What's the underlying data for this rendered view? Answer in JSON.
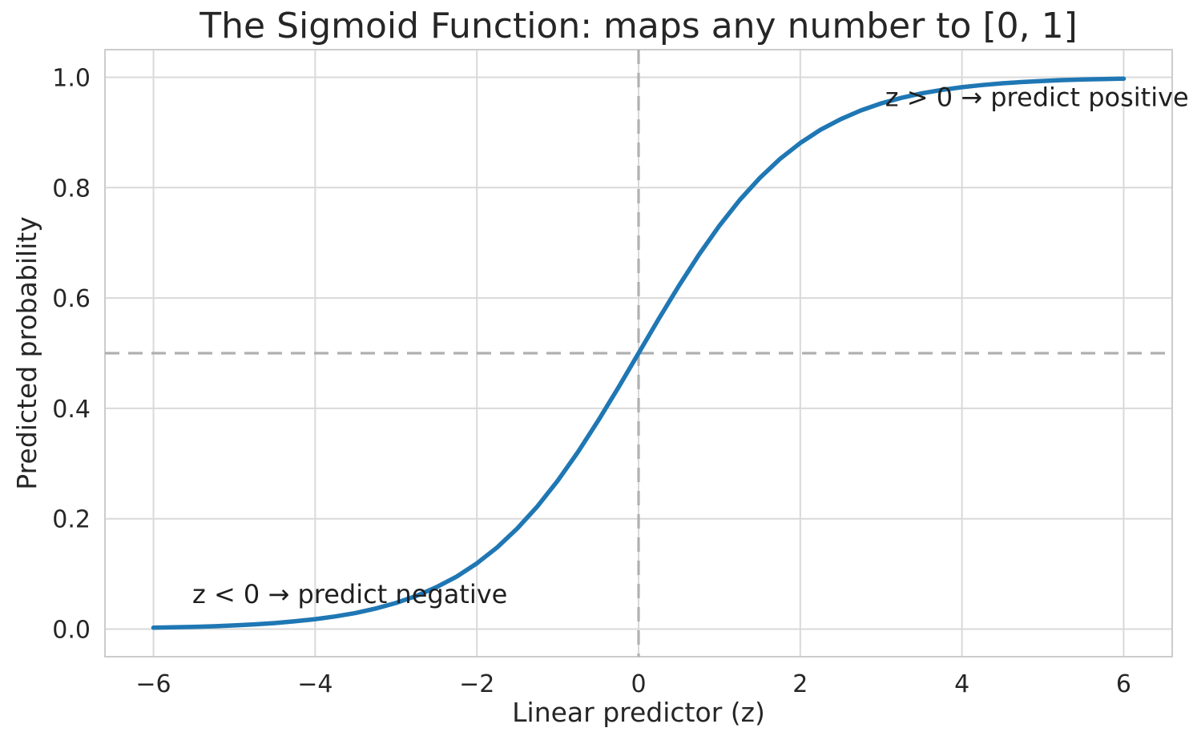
{
  "chart_data": {
    "type": "line",
    "title": "The Sigmoid Function: maps any number to [0, 1]",
    "xlabel": "Linear predictor (z)",
    "ylabel": "Predicted probability",
    "xlim": [
      -6.6,
      6.6
    ],
    "ylim": [
      -0.05,
      1.05
    ],
    "grid": true,
    "legend": "none",
    "x_ticks": [
      -6,
      -4,
      -2,
      0,
      2,
      4,
      6
    ],
    "x_tick_labels": [
      "−6",
      "−4",
      "−2",
      "0",
      "2",
      "4",
      "6"
    ],
    "y_ticks": [
      0.0,
      0.2,
      0.4,
      0.6,
      0.8,
      1.0
    ],
    "y_tick_labels": [
      "0.0",
      "0.2",
      "0.4",
      "0.6",
      "0.8",
      "1.0"
    ],
    "series": [
      {
        "name": "sigmoid",
        "color": "#1f77b4",
        "x": [
          -6.0,
          -5.75,
          -5.5,
          -5.25,
          -5.0,
          -4.75,
          -4.5,
          -4.25,
          -4.0,
          -3.75,
          -3.5,
          -3.25,
          -3.0,
          -2.75,
          -2.5,
          -2.25,
          -2.0,
          -1.75,
          -1.5,
          -1.25,
          -1.0,
          -0.75,
          -0.5,
          -0.25,
          0.0,
          0.25,
          0.5,
          0.75,
          1.0,
          1.25,
          1.5,
          1.75,
          2.0,
          2.25,
          2.5,
          2.75,
          3.0,
          3.25,
          3.5,
          3.75,
          4.0,
          4.25,
          4.5,
          4.75,
          5.0,
          5.25,
          5.5,
          5.75,
          6.0
        ],
        "y": [
          0.0025,
          0.0032,
          0.0041,
          0.0052,
          0.0067,
          0.0086,
          0.011,
          0.0141,
          0.018,
          0.023,
          0.0293,
          0.0373,
          0.0474,
          0.0601,
          0.0759,
          0.0953,
          0.1192,
          0.148,
          0.1824,
          0.2227,
          0.2689,
          0.3208,
          0.3775,
          0.4378,
          0.5,
          0.5622,
          0.6225,
          0.6792,
          0.7311,
          0.7773,
          0.8176,
          0.852,
          0.8808,
          0.9047,
          0.9241,
          0.9399,
          0.9526,
          0.9627,
          0.9707,
          0.977,
          0.982,
          0.9859,
          0.989,
          0.9914,
          0.9933,
          0.9948,
          0.9959,
          0.9968,
          0.9975
        ]
      }
    ],
    "reference_lines": [
      {
        "orientation": "horizontal",
        "value": 0.5,
        "style": "dashed",
        "color": "#b0b0b0"
      },
      {
        "orientation": "vertical",
        "value": 0.0,
        "style": "dashed",
        "color": "#b0b0b0"
      }
    ],
    "annotations": [
      {
        "text": "z > 0 → predict positive",
        "x": 3.05,
        "y": 0.964,
        "anchor": "start"
      },
      {
        "text": "z < 0 → predict negative",
        "x": -5.52,
        "y": 0.063,
        "anchor": "start"
      }
    ]
  },
  "colors": {
    "line": "#1f77b4",
    "grid": "#d9d9d9",
    "spine": "#cccccc",
    "dashed": "#b0b0b0",
    "text": "#262626",
    "background": "#ffffff"
  }
}
